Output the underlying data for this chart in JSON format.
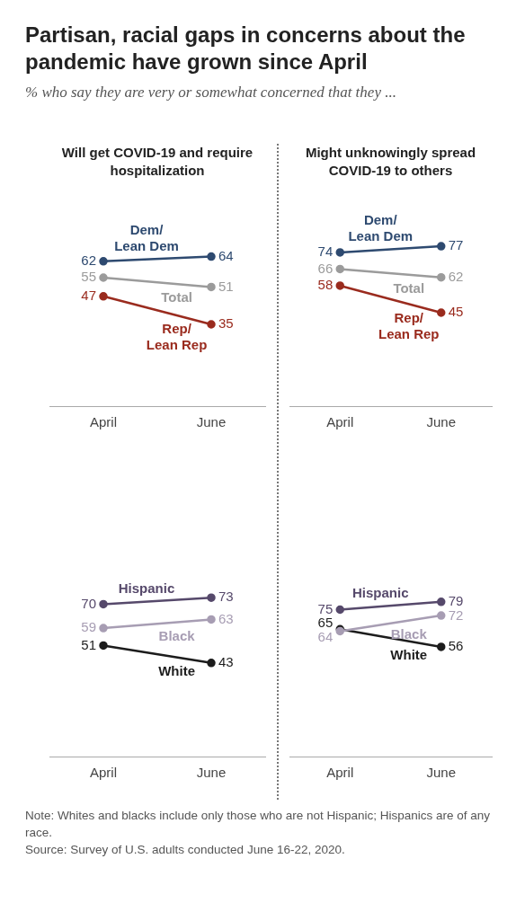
{
  "chart_data": [
    {
      "type": "other",
      "title": "Partisan, racial gaps in concerns about the pandemic have grown since April",
      "subtitle": "% who say they are very or somewhat concerned that they ...",
      "annotations": [
        "Note: Whites and blacks include only those who are not Hispanic; Hispanics are of any race.",
        "Source: Survey of U.S. adults conducted June 16-22, 2020."
      ]
    },
    {
      "type": "line",
      "title": "Will get COVID-19 and require hospitalization",
      "categories": [
        "April",
        "June"
      ],
      "tick_labels": "x",
      "data_labels": true,
      "marker": "circle",
      "series": [
        {
          "name": "Dem/\nLean Dem",
          "color": "#2e4a70",
          "values": [
            62,
            64
          ]
        },
        {
          "name": "Total",
          "color": "#9b9b9b",
          "values": [
            55,
            51
          ]
        },
        {
          "name": "Rep/\nLean Rep",
          "color": "#9a2b1e",
          "values": [
            47,
            35
          ]
        }
      ]
    },
    {
      "type": "line",
      "title": "Might unknowingly spread COVID-19 to others",
      "categories": [
        "April",
        "June"
      ],
      "tick_labels": "x",
      "data_labels": true,
      "marker": "circle",
      "series": [
        {
          "name": "Dem/\nLean Dem",
          "color": "#2e4a70",
          "values": [
            74,
            77
          ]
        },
        {
          "name": "Total",
          "color": "#9b9b9b",
          "values": [
            66,
            62
          ]
        },
        {
          "name": "Rep/\nLean Rep",
          "color": "#9a2b1e",
          "values": [
            58,
            45
          ]
        }
      ]
    },
    {
      "type": "line",
      "categories": [
        "April",
        "June"
      ],
      "tick_labels": "x",
      "data_labels": true,
      "marker": "circle",
      "series": [
        {
          "name": "Hispanic",
          "color": "#56496b",
          "values": [
            70,
            73
          ]
        },
        {
          "name": "Black",
          "color": "#a79db3",
          "values": [
            59,
            63
          ]
        },
        {
          "name": "White",
          "color": "#1c1c1c",
          "values": [
            51,
            43
          ]
        }
      ]
    },
    {
      "type": "line",
      "categories": [
        "April",
        "June"
      ],
      "tick_labels": "x",
      "data_labels": true,
      "marker": "circle",
      "series": [
        {
          "name": "Hispanic",
          "color": "#56496b",
          "values": [
            75,
            79
          ]
        },
        {
          "name": "Black",
          "color": "#a79db3",
          "values": [
            64,
            72
          ]
        },
        {
          "name": "White",
          "color": "#1c1c1c",
          "values": [
            65,
            56
          ]
        }
      ]
    }
  ]
}
